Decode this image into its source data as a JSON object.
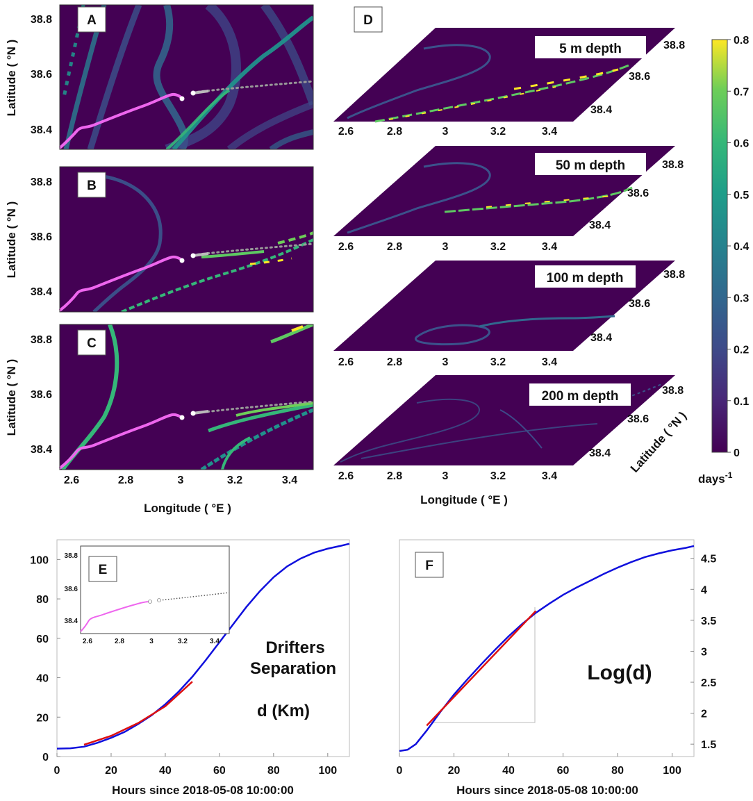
{
  "colors": {
    "background_field": "#440154",
    "ridge_low": "#3b528b",
    "ridge_mid": "#21918c",
    "ridge_high": "#5ec962",
    "ridge_max": "#fde725",
    "drifter_pink": "#ee66ee",
    "drifter_gray": "#888888",
    "line_blue": "#1010dd",
    "line_red": "#dd1010"
  },
  "colorbar": {
    "ticks": [
      "0",
      "0.1",
      "0.2",
      "0.3",
      "0.4",
      "0.5",
      "0.6",
      "0.7",
      "0.8"
    ],
    "unit": "days",
    "unit_exp": "-1"
  },
  "chart_data": [
    {
      "id": "A",
      "type": "heatmap",
      "title": "A",
      "xlabel": "",
      "ylabel": "Latitude ( °N )",
      "xlim": [
        2.55,
        3.48
      ],
      "ylim": [
        38.33,
        38.86
      ],
      "yticks": [
        "38.4",
        "38.6",
        "38.8"
      ]
    },
    {
      "id": "B",
      "type": "heatmap",
      "title": "B",
      "xlabel": "",
      "ylabel": "Latitude ( °N )",
      "xlim": [
        2.55,
        3.48
      ],
      "ylim": [
        38.33,
        38.86
      ],
      "yticks": [
        "38.4",
        "38.6",
        "38.8"
      ]
    },
    {
      "id": "C",
      "type": "heatmap",
      "title": "C",
      "xlabel": "Longitude ( °E )",
      "ylabel": "Latitude ( °N )",
      "xlim": [
        2.55,
        3.48
      ],
      "ylim": [
        38.33,
        38.86
      ],
      "xticks": [
        "2.6",
        "2.8",
        "3",
        "3.2",
        "3.4"
      ],
      "yticks": [
        "38.4",
        "38.6",
        "38.8"
      ]
    },
    {
      "id": "D",
      "type": "heatmap",
      "title": "D",
      "xlabel": "Longitude ( °E )",
      "ylabel": "Latitude ( °N )",
      "layers": [
        "5 m depth",
        "50 m depth",
        "100 m depth",
        "200 m depth"
      ],
      "xticks": [
        "2.6",
        "2.8",
        "3",
        "3.2",
        "3.4"
      ],
      "yticks": [
        "38.4",
        "38.6",
        "38.8"
      ]
    },
    {
      "id": "E",
      "type": "line",
      "title": "E",
      "xlabel": "Hours since 2018-05-08 10:00:00",
      "ylabel": "",
      "annotation": [
        "Drifters",
        "Separation",
        "d (Km)"
      ],
      "xlim": [
        0,
        108
      ],
      "ylim": [
        0,
        110
      ],
      "xticks": [
        "0",
        "20",
        "40",
        "60",
        "80",
        "100"
      ],
      "yticks": [
        "0",
        "20",
        "40",
        "60",
        "80",
        "100"
      ],
      "series": [
        {
          "name": "separation",
          "x": [
            0,
            5,
            10,
            15,
            20,
            25,
            30,
            35,
            40,
            45,
            50,
            55,
            60,
            65,
            70,
            75,
            80,
            85,
            90,
            95,
            100,
            105,
            108
          ],
          "values": [
            4,
            4.2,
            5,
            7,
            9.5,
            12.5,
            16.5,
            21,
            26.5,
            33,
            40.5,
            49,
            58,
            67,
            76,
            84,
            91,
            96.5,
            100.5,
            103.5,
            105.5,
            107,
            108
          ]
        },
        {
          "name": "fit",
          "x": [
            10,
            20,
            30,
            40,
            50
          ],
          "values": [
            6,
            10.5,
            17,
            25.5,
            38
          ]
        }
      ],
      "inset": {
        "xticks": [
          "2.6",
          "2.8",
          "3",
          "3.2",
          "3.4"
        ],
        "yticks": [
          "38.4",
          "38.6",
          "38.8"
        ]
      }
    },
    {
      "id": "F",
      "type": "line",
      "title": "F",
      "xlabel": "Hours since 2018-05-08 10:00:00",
      "ylabel": "",
      "annotation": [
        "Log(d)"
      ],
      "xlim": [
        0,
        108
      ],
      "ylim": [
        1.3,
        4.8
      ],
      "xticks": [
        "0",
        "20",
        "40",
        "60",
        "80",
        "100"
      ],
      "yticks": [
        "1.5",
        "2",
        "2.5",
        "3",
        "3.5",
        "4",
        "4.5"
      ],
      "series": [
        {
          "name": "log_separation",
          "x": [
            0,
            3,
            6,
            10,
            15,
            20,
            25,
            30,
            35,
            40,
            45,
            50,
            55,
            60,
            65,
            70,
            75,
            80,
            85,
            90,
            95,
            100,
            105,
            108
          ],
          "values": [
            1.39,
            1.41,
            1.5,
            1.72,
            2.02,
            2.3,
            2.55,
            2.79,
            3.02,
            3.24,
            3.44,
            3.62,
            3.77,
            3.91,
            4.03,
            4.14,
            4.25,
            4.35,
            4.44,
            4.52,
            4.58,
            4.63,
            4.67,
            4.7
          ]
        },
        {
          "name": "fit",
          "x": [
            10,
            50
          ],
          "values": [
            1.8,
            3.65
          ]
        }
      ]
    }
  ]
}
